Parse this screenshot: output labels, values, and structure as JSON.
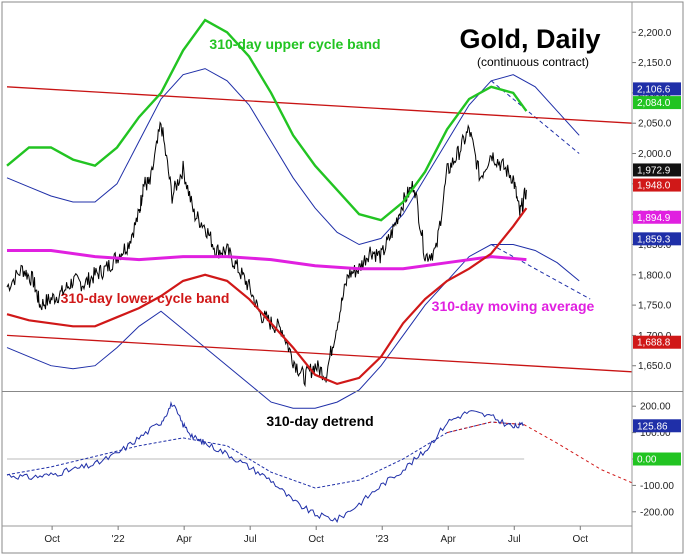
{
  "chart_data": [
    {
      "type": "line",
      "title": "Gold, Daily",
      "subtitle": "(continuous contract)",
      "y_ticks": [
        "2,200.0",
        "2,150.0",
        "2,100.0",
        "2,050.0",
        "2,000.0",
        "1,950.0",
        "1,900.0",
        "1,850.0",
        "1,800.0",
        "1,750.0",
        "1,700.0",
        "1,650.0"
      ],
      "ylim": [
        1610,
        2240
      ],
      "x_ticks": [
        "Oct",
        "'22",
        "Apr",
        "Jul",
        "Oct",
        "'23",
        "Apr",
        "Jul",
        "Oct"
      ],
      "x_tick_months": [
        2.05,
        5.05,
        8.05,
        11.05,
        14.05,
        17.05,
        20.05,
        23.05,
        26.05
      ],
      "xlim": [
        0,
        28.4
      ],
      "grid": false,
      "annotations": {
        "upper_band": "310-day upper cycle band",
        "lower_band": "310-day lower cycle band",
        "moving_average": "310-day moving average"
      },
      "price_badges": [
        {
          "label": "2,106.6",
          "value": 2106.6,
          "color": "#1f2fa8"
        },
        {
          "label": "2,084.0",
          "value": 2084.0,
          "color": "#22c422"
        },
        {
          "label": "1,972.9",
          "value": 1972.9,
          "color": "#111111"
        },
        {
          "label": "1,948.0",
          "value": 1948.0,
          "color": "#d01818"
        },
        {
          "label": "1,894.9",
          "value": 1894.9,
          "color": "#e020e0"
        },
        {
          "label": "1,859.3",
          "value": 1859.3,
          "color": "#1f2fa8"
        },
        {
          "label": "1,688.8",
          "value": 1688.8,
          "color": "#d01818"
        }
      ],
      "series": [
        {
          "kind": "price",
          "color": "#000000",
          "x": [
            0,
            0.7,
            1.2,
            1.5,
            2.0,
            2.5,
            3.0,
            3.5,
            4.0,
            4.5,
            5.0,
            5.5,
            6.0,
            6.2,
            6.5,
            7.0,
            7.5,
            8.0,
            8.5,
            9.0,
            9.5,
            10.0,
            10.5,
            11.0,
            11.5,
            12.0,
            12.5,
            13.0,
            13.5,
            14.0,
            14.5,
            15.0,
            15.5,
            16.0,
            16.5,
            17.0,
            17.5,
            18.0,
            18.5,
            19.0,
            19.5,
            20.0,
            20.5,
            21.0,
            21.5,
            22.0,
            22.5,
            23.0,
            23.3,
            23.6
          ],
          "y": [
            1780,
            1810,
            1790,
            1750,
            1760,
            1770,
            1790,
            1785,
            1800,
            1810,
            1830,
            1850,
            1900,
            1950,
            1950,
            2050,
            1930,
            1975,
            1900,
            1880,
            1840,
            1840,
            1810,
            1780,
            1735,
            1720,
            1710,
            1660,
            1630,
            1650,
            1635,
            1720,
            1800,
            1810,
            1840,
            1830,
            1870,
            1920,
            1950,
            1830,
            1840,
            1970,
            2000,
            2040,
            1960,
            2000,
            1980,
            1960,
            1900,
            1940
          ]
        },
        {
          "kind": "upper_cycle_band",
          "color": "#22c422",
          "x": [
            0,
            1,
            2,
            3,
            4,
            5,
            6,
            7,
            8,
            9,
            10,
            11,
            12,
            13,
            14,
            15,
            16,
            17,
            18,
            19,
            20,
            21,
            22,
            23,
            23.6
          ],
          "y": [
            1980,
            2010,
            2010,
            1990,
            1980,
            2010,
            2060,
            2100,
            2170,
            2220,
            2200,
            2160,
            2100,
            2030,
            1980,
            1940,
            1900,
            1890,
            1920,
            1970,
            2040,
            2090,
            2110,
            2100,
            2070
          ]
        },
        {
          "kind": "moving_average",
          "color": "#e020e0",
          "x": [
            0,
            2,
            4,
            6,
            8,
            10,
            12,
            14,
            16,
            18,
            20,
            22,
            23.6
          ],
          "y": [
            1840,
            1840,
            1830,
            1825,
            1830,
            1830,
            1825,
            1815,
            1810,
            1810,
            1820,
            1830,
            1825
          ]
        },
        {
          "kind": "lower_cycle_band",
          "color": "#d01818",
          "x": [
            0,
            1,
            2,
            3,
            4,
            5,
            6,
            7,
            8,
            9,
            10,
            11,
            12,
            13,
            14,
            15,
            16,
            17,
            18,
            19,
            20,
            21,
            22,
            23,
            23.6
          ],
          "y": [
            1735,
            1725,
            1720,
            1715,
            1715,
            1730,
            1745,
            1765,
            1790,
            1800,
            1790,
            1760,
            1720,
            1680,
            1635,
            1620,
            1630,
            1665,
            1720,
            1760,
            1790,
            1810,
            1835,
            1880,
            1910
          ]
        },
        {
          "kind": "upper_envelope",
          "color": "#1f2fa8",
          "x": [
            0,
            1,
            2,
            3,
            4,
            5,
            6,
            7,
            8,
            9,
            10,
            11,
            12,
            13,
            14,
            15,
            16,
            17,
            18,
            19,
            20,
            21,
            22,
            23,
            24,
            25,
            26
          ],
          "y": [
            1960,
            1945,
            1930,
            1920,
            1920,
            1950,
            2020,
            2090,
            2130,
            2140,
            2120,
            2080,
            2020,
            1960,
            1910,
            1870,
            1850,
            1860,
            1900,
            1960,
            2020,
            2080,
            2120,
            2130,
            2110,
            2070,
            2030
          ]
        },
        {
          "kind": "lower_envelope",
          "color": "#1f2fa8",
          "x": [
            0,
            1,
            2,
            3,
            4,
            5,
            6,
            7,
            8,
            9,
            10,
            11,
            12,
            13,
            14,
            15,
            16,
            17,
            18,
            19,
            20,
            21,
            22,
            23,
            24,
            25,
            26
          ],
          "y": [
            1680,
            1665,
            1650,
            1645,
            1650,
            1680,
            1715,
            1740,
            1710,
            1680,
            1650,
            1620,
            1590,
            1580,
            1580,
            1590,
            1610,
            1650,
            1700,
            1750,
            1790,
            1830,
            1850,
            1850,
            1840,
            1820,
            1790
          ]
        },
        {
          "kind": "upper_channel_line",
          "color": "#c81414",
          "x": [
            0,
            28.4
          ],
          "y": [
            2110,
            2050
          ]
        },
        {
          "kind": "lower_channel_line",
          "color": "#c81414",
          "x": [
            0,
            28.4
          ],
          "y": [
            1700,
            1640
          ]
        }
      ]
    },
    {
      "type": "line",
      "title": "310-day detrend",
      "y_ticks": [
        "200.00",
        "100.00",
        "0.00",
        "-100.00",
        "-200.00"
      ],
      "y_tick_values": [
        200,
        100,
        0,
        -100,
        -200
      ],
      "ylim": [
        -250,
        250
      ],
      "x_ticks": [
        "Oct",
        "'22",
        "Apr",
        "Jul",
        "Oct",
        "'23",
        "Apr",
        "Jul",
        "Oct"
      ],
      "x_tick_months": [
        2.05,
        5.05,
        8.05,
        11.05,
        14.05,
        17.05,
        20.05,
        23.05,
        26.05
      ],
      "xlim": [
        0,
        28.4
      ],
      "price_badges": [
        {
          "label": "125.86",
          "value": 125.86,
          "color": "#1f2fa8"
        },
        {
          "label": "0.00",
          "value": 0,
          "color": "#22c422"
        }
      ],
      "series": [
        {
          "kind": "detrend",
          "color": "#1f2fa8",
          "x": [
            0,
            1,
            2,
            3,
            4,
            5,
            6,
            7,
            7.5,
            8,
            8.5,
            9,
            10,
            11,
            12,
            13,
            14,
            15,
            16,
            17,
            18,
            19,
            20,
            21,
            22,
            23,
            23.5
          ],
          "y": [
            -60,
            -70,
            -60,
            -40,
            -20,
            20,
            80,
            140,
            210,
            130,
            80,
            60,
            20,
            -30,
            -80,
            -160,
            -210,
            -230,
            -170,
            -100,
            -40,
            30,
            140,
            180,
            160,
            120,
            130
          ]
        },
        {
          "kind": "projected_cycle",
          "color": "#1f2fa8",
          "x": [
            0,
            2,
            4,
            6,
            8,
            10,
            12,
            14,
            16,
            18,
            20,
            22,
            23.5
          ],
          "y": [
            -60,
            -30,
            10,
            50,
            80,
            50,
            -50,
            -110,
            -80,
            0,
            100,
            140,
            130
          ]
        },
        {
          "kind": "cycle_forecast",
          "color": "#d01818",
          "x": [
            20,
            22,
            23.5,
            25,
            27,
            28.4
          ],
          "y": [
            100,
            140,
            130,
            60,
            -40,
            -90
          ]
        }
      ]
    }
  ]
}
